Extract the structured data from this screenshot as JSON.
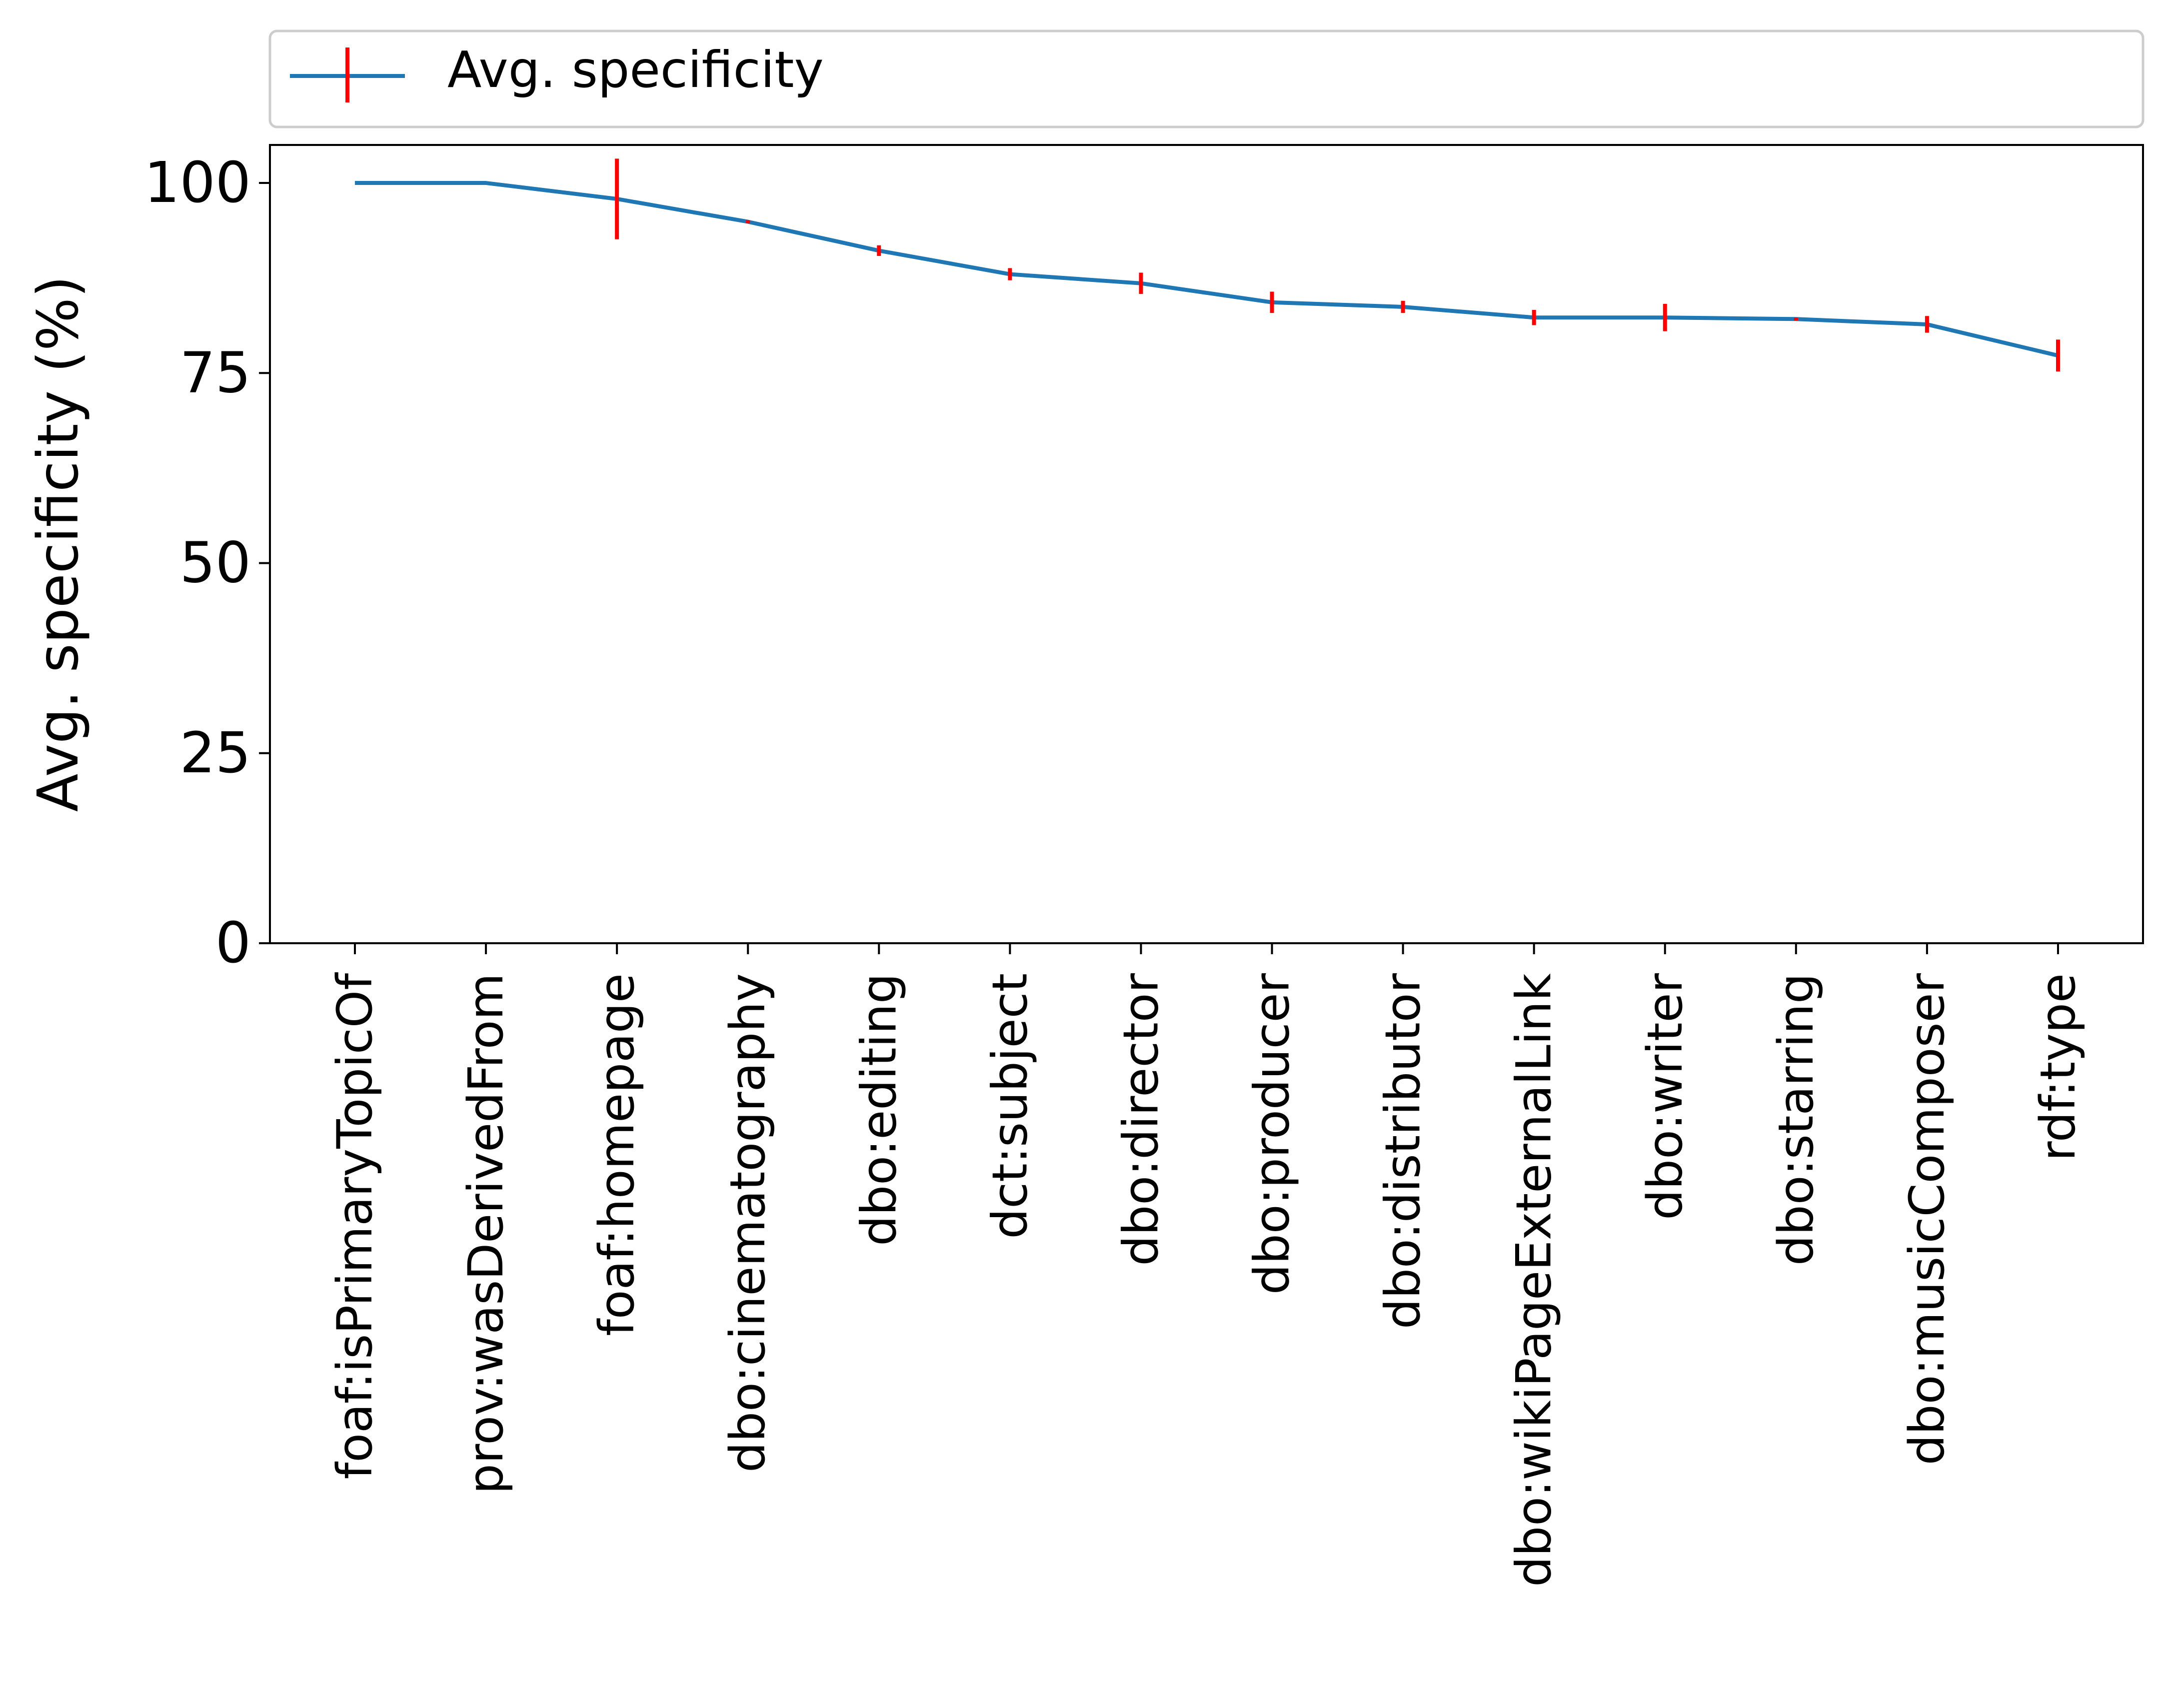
{
  "chart_data": {
    "type": "line",
    "categories": [
      "foaf:isPrimaryTopicOf",
      "prov:wasDerivedFrom",
      "foaf:homepage",
      "dbo:cinematography",
      "dbo:editing",
      "dct:subject",
      "dbo:director",
      "dbo:producer",
      "dbo:distributor",
      "dbo:wikiPageExternalLink",
      "dbo:writer",
      "dbo:starring",
      "dbo:musicComposer",
      "rdf:type"
    ],
    "series": [
      {
        "name": "Avg. specificity",
        "values": [
          100,
          100,
          97.9,
          94.9,
          91.1,
          88.0,
          86.8,
          84.3,
          83.7,
          82.3,
          82.3,
          82.1,
          81.4,
          77.3
        ],
        "errors": [
          0,
          0,
          5.3,
          0.2,
          0.7,
          0.8,
          1.4,
          1.4,
          0.8,
          1.0,
          1.8,
          0.2,
          1.1,
          2.1
        ],
        "line_color": "#1f77b4",
        "error_color": "#ff0000"
      }
    ],
    "xlabel": "",
    "ylabel": "Avg. specificity (%)",
    "ylim": [
      0,
      105
    ],
    "yticks": [
      0,
      25,
      50,
      75,
      100
    ],
    "grid": false,
    "legend_position": "top-above"
  }
}
